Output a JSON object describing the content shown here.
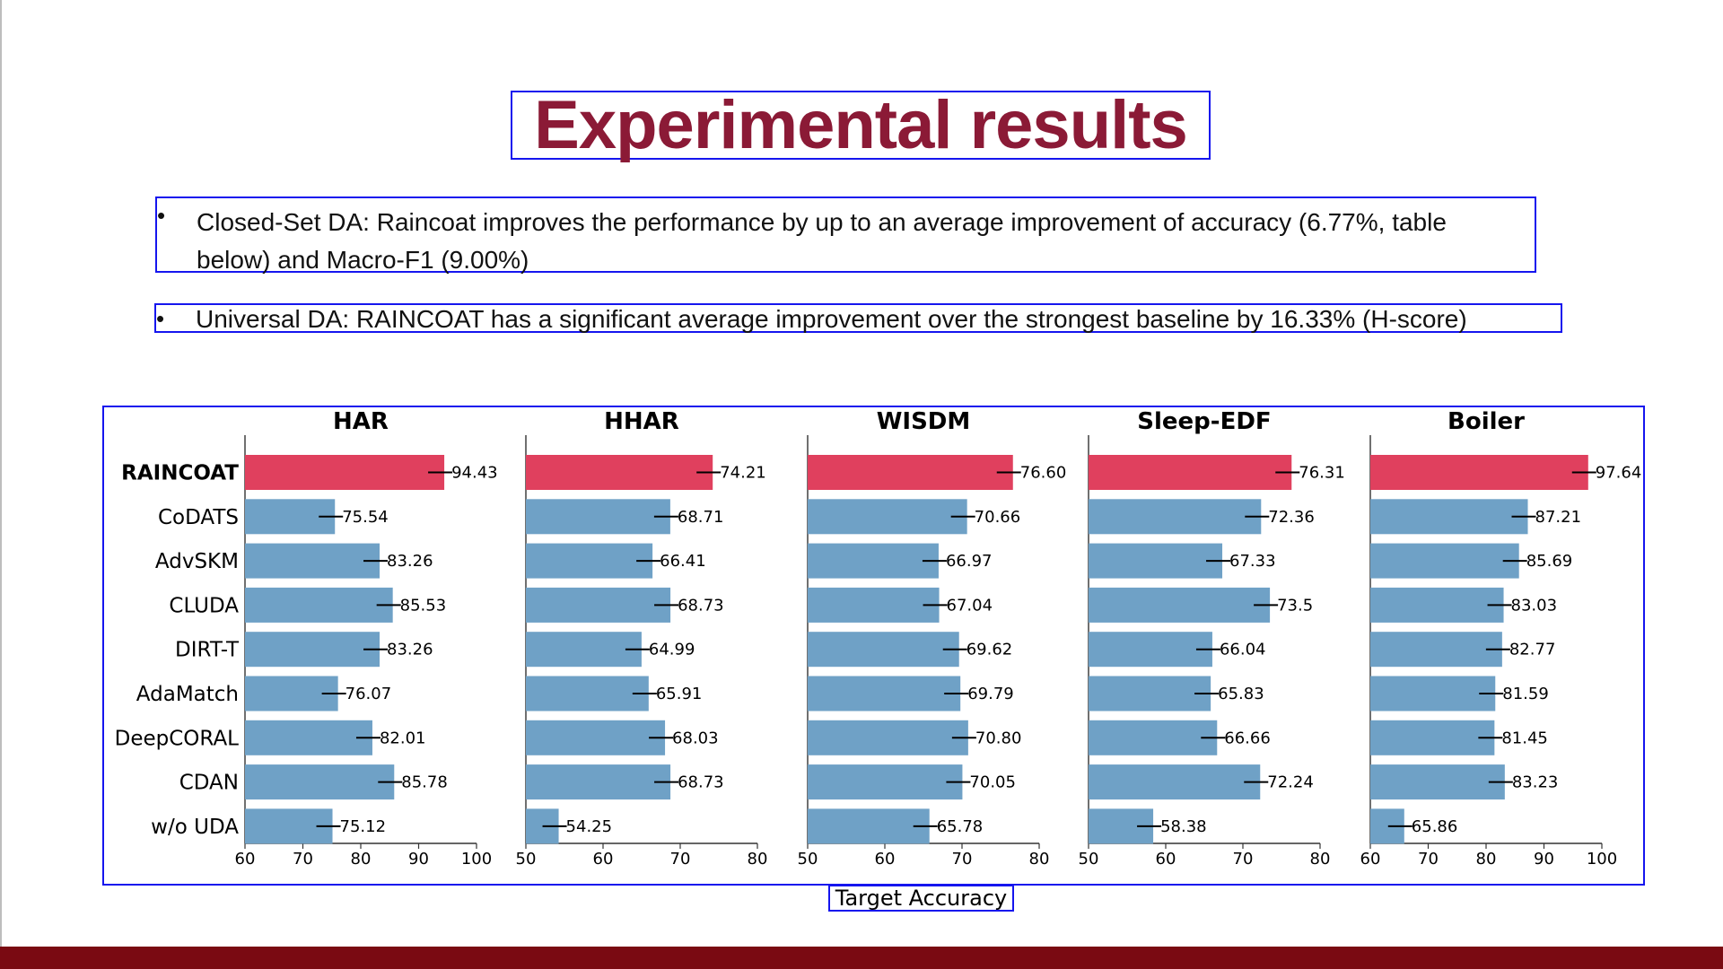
{
  "title": "Experimental results",
  "bullets": [
    "Closed-Set DA: Raincoat improves the performance by up to an average improvement of accuracy (6.77%, table",
    "below) and Macro-F1 (9.00%)",
    "Universal DA: RAINCOAT has a significant average improvement over the strongest baseline by 16.33% (H-score)"
  ],
  "bullet_symbol": "•",
  "colors": {
    "title": "#8b1a36",
    "highlight_bar": "#e0405e",
    "bar": "#6fa1c6",
    "frame": "#1515ee",
    "footer": "#7a0a12"
  },
  "chart_data": {
    "type": "bar",
    "orientation": "horizontal",
    "xlabel": "Target Accuracy",
    "categories": [
      "RAINCOAT",
      "CoDATS",
      "AdvSKM",
      "CLUDA",
      "DIRT-T",
      "AdaMatch",
      "DeepCORAL",
      "CDAN",
      "w/o UDA"
    ],
    "highlight_category": "RAINCOAT",
    "panels": [
      {
        "title": "HAR",
        "xlim": [
          60,
          100
        ],
        "xticks": [
          60,
          70,
          80,
          90,
          100
        ],
        "values": [
          94.43,
          75.54,
          83.26,
          85.53,
          83.26,
          76.07,
          82.01,
          85.78,
          75.12
        ],
        "labels": [
          "94.43",
          "75.54",
          "83.26",
          "85.53",
          "83.26",
          "76.07",
          "82.01",
          "85.78",
          "75.12"
        ]
      },
      {
        "title": "HHAR",
        "xlim": [
          50,
          80
        ],
        "xticks": [
          50,
          60,
          70,
          80
        ],
        "values": [
          74.21,
          68.71,
          66.41,
          68.73,
          64.99,
          65.91,
          68.03,
          68.73,
          54.25
        ],
        "labels": [
          "74.21",
          "68.71",
          "66.41",
          "68.73",
          "64.99",
          "65.91",
          "68.03",
          "68.73",
          "54.25"
        ]
      },
      {
        "title": "WISDM",
        "xlim": [
          50,
          80
        ],
        "xticks": [
          50,
          60,
          70,
          80
        ],
        "values": [
          76.6,
          70.66,
          66.97,
          67.04,
          69.62,
          69.79,
          70.8,
          70.05,
          65.78
        ],
        "labels": [
          "76.60",
          "70.66",
          "66.97",
          "67.04",
          "69.62",
          "69.79",
          "70.80",
          "70.05",
          "65.78"
        ]
      },
      {
        "title": "Sleep-EDF",
        "xlim": [
          50,
          80
        ],
        "xticks": [
          50,
          60,
          70,
          80
        ],
        "values": [
          76.31,
          72.36,
          67.33,
          73.5,
          66.04,
          65.83,
          66.66,
          72.24,
          58.38
        ],
        "labels": [
          "76.31",
          "72.36",
          "67.33",
          "73.5",
          "66.04",
          "65.83",
          "66.66",
          "72.24",
          "58.38"
        ]
      },
      {
        "title": "Boiler",
        "xlim": [
          60,
          100
        ],
        "xticks": [
          60,
          70,
          80,
          90,
          100
        ],
        "values": [
          97.64,
          87.21,
          85.69,
          83.03,
          82.77,
          81.59,
          81.45,
          83.23,
          65.86
        ],
        "labels": [
          "97.64",
          "87.21",
          "85.69",
          "83.03",
          "82.77",
          "81.59",
          "81.45",
          "83.23",
          "65.86"
        ]
      }
    ]
  }
}
